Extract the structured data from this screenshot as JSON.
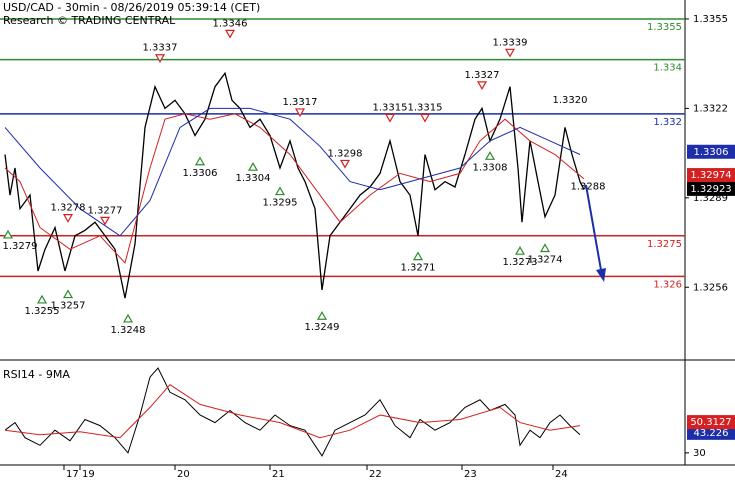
{
  "chart_data": [
    {
      "type": "line",
      "title": "USD/CAD - 30min - 08/26/2019 05:39:14 (CET)",
      "subtitle": "Research © TRADING CENTRAL",
      "xlim": [
        0,
        342.5
      ],
      "ylim": [
        1.3231,
        1.3362
      ],
      "yticks": [
        1.3355,
        1.3322,
        1.3289,
        1.3256
      ],
      "series": [
        {
          "color": "#000000",
          "last": 1.32923,
          "x": [
            2.5,
            5,
            7.5,
            10,
            15,
            19,
            22.5,
            27.5,
            32.5,
            37.5,
            42.5,
            47.5,
            52.5,
            57.5,
            62.5,
            67.5,
            72.5,
            77.5,
            82.5,
            87.5,
            92.5,
            97.5,
            102.5,
            107.5,
            112.5,
            116,
            120,
            125,
            130,
            135,
            140,
            145,
            149,
            152.5,
            157.5,
            161,
            165,
            170,
            175,
            180,
            185,
            190,
            195,
            200,
            205,
            209,
            212.5,
            217.5,
            222.5,
            227.5,
            232.5,
            237.5,
            241,
            245,
            250,
            255,
            259,
            261,
            265,
            269,
            272.5,
            277.5,
            282.5,
            286,
            290,
            292
          ],
          "values": [
            1.3305,
            1.329,
            1.33,
            1.3285,
            1.329,
            1.3262,
            1.327,
            1.3278,
            1.3262,
            1.3275,
            1.3277,
            1.328,
            1.3275,
            1.327,
            1.3252,
            1.3272,
            1.3315,
            1.333,
            1.3322,
            1.3325,
            1.332,
            1.3312,
            1.3318,
            1.333,
            1.3335,
            1.3325,
            1.3322,
            1.3315,
            1.3318,
            1.3312,
            1.33,
            1.331,
            1.33,
            1.3295,
            1.3285,
            1.3255,
            1.3275,
            1.328,
            1.3285,
            1.329,
            1.3293,
            1.3298,
            1.331,
            1.3295,
            1.329,
            1.3275,
            1.3305,
            1.3292,
            1.3295,
            1.3293,
            1.3305,
            1.3318,
            1.3322,
            1.331,
            1.3318,
            1.333,
            1.33,
            1.328,
            1.331,
            1.3295,
            1.3282,
            1.329,
            1.3315,
            1.3305,
            1.3295,
            1.3292
          ]
        },
        {
          "color": "#d42020",
          "last": 1.32974,
          "x": [
            2.5,
            10,
            20,
            35,
            50,
            62.5,
            75,
            82.5,
            92.5,
            105,
            117.5,
            130,
            145,
            160,
            170,
            185,
            200,
            215,
            230,
            240,
            252.5,
            265,
            277.5,
            292
          ],
          "values": [
            1.33,
            1.3295,
            1.3278,
            1.327,
            1.3275,
            1.3265,
            1.33,
            1.3318,
            1.332,
            1.3318,
            1.332,
            1.3315,
            1.3305,
            1.329,
            1.328,
            1.329,
            1.3298,
            1.3295,
            1.3298,
            1.331,
            1.3318,
            1.331,
            1.3305,
            1.3296
          ]
        },
        {
          "color": "#1c2fa8",
          "last": 1.3306,
          "x": [
            2.5,
            20,
            40,
            60,
            75,
            90,
            105,
            125,
            145,
            160,
            175,
            190,
            210,
            230,
            245,
            260,
            275,
            290
          ],
          "values": [
            1.3315,
            1.33,
            1.3285,
            1.3275,
            1.3288,
            1.3315,
            1.3322,
            1.3322,
            1.3318,
            1.3308,
            1.3295,
            1.3292,
            1.3296,
            1.33,
            1.331,
            1.3315,
            1.331,
            1.3305
          ]
        }
      ],
      "levels": [
        {
          "value": 1.3355,
          "color": "#2e8b2e"
        },
        {
          "value": 1.334,
          "color": "#2e8b2e"
        },
        {
          "value": 1.332,
          "color": "#1c2fa8"
        },
        {
          "value": 1.3275,
          "color": "#d42020"
        },
        {
          "value": 1.326,
          "color": "#d42020"
        }
      ],
      "highs": [
        {
          "x": 34,
          "value": 1.3278
        },
        {
          "x": 52.5,
          "value": 1.3277
        },
        {
          "x": 80,
          "value": 1.3337
        },
        {
          "x": 115,
          "value": 1.3346
        },
        {
          "x": 150,
          "value": 1.3317
        },
        {
          "x": 172.5,
          "value": 1.3298
        },
        {
          "x": 195,
          "value": 1.3315
        },
        {
          "x": 212.5,
          "value": 1.3315
        },
        {
          "x": 241,
          "value": 1.3327
        },
        {
          "x": 255,
          "value": 1.3339
        }
      ],
      "lows": [
        {
          "x": 4,
          "value": 1.3279
        },
        {
          "x": 21,
          "value": 1.3255
        },
        {
          "x": 34,
          "value": 1.3257
        },
        {
          "x": 64,
          "value": 1.3248
        },
        {
          "x": 100,
          "value": 1.3306
        },
        {
          "x": 126.5,
          "value": 1.3304
        },
        {
          "x": 140,
          "value": 1.3295
        },
        {
          "x": 161,
          "value": 1.3249
        },
        {
          "x": 209,
          "value": 1.3271
        },
        {
          "x": 245,
          "value": 1.3308
        },
        {
          "x": 260,
          "value": 1.3273
        },
        {
          "x": 272.5,
          "value": 1.3274
        }
      ],
      "notes": [
        {
          "x": 285,
          "value": 1.332,
          "label": "1.3320"
        },
        {
          "x": 294,
          "value": 1.3288
        }
      ]
    },
    {
      "type": "line",
      "title": "RSI14 - 9MA",
      "xlim": [
        0,
        342.5
      ],
      "ylim": [
        22,
        88
      ],
      "yticks": [
        30
      ],
      "xticks": [
        {
          "value": 32,
          "label": "17"
        },
        {
          "value": 40,
          "label": "19"
        },
        {
          "value": 87.5,
          "label": "20"
        },
        {
          "value": 135,
          "label": "21"
        },
        {
          "value": 183.5,
          "label": "22"
        },
        {
          "value": 231,
          "label": "23"
        },
        {
          "value": 276.5,
          "label": "24"
        }
      ],
      "series": [
        {
          "color": "#000000",
          "box": "#1c2fa8",
          "last": 43.226,
          "x": [
            2.5,
            7.5,
            12.5,
            20,
            27.5,
            35,
            42.5,
            50,
            57.5,
            64,
            70,
            75,
            79,
            85,
            92.5,
            100,
            107.5,
            115,
            122.5,
            130,
            137.5,
            145,
            152.5,
            157.5,
            161,
            167.5,
            175,
            182.5,
            190,
            197.5,
            205,
            210,
            217.5,
            225,
            232.5,
            240,
            245,
            252.5,
            257.5,
            260,
            265,
            270,
            275,
            280,
            285,
            290
          ],
          "values": [
            45,
            50,
            40,
            35,
            45,
            38,
            52,
            48,
            40,
            30,
            55,
            80,
            86,
            70,
            65,
            55,
            50,
            58,
            50,
            45,
            55,
            48,
            45,
            35,
            28,
            45,
            50,
            55,
            65,
            48,
            40,
            52,
            45,
            50,
            60,
            65,
            58,
            62,
            55,
            35,
            45,
            40,
            50,
            55,
            48,
            42
          ]
        },
        {
          "color": "#d42020",
          "box": "#d42020",
          "last": 50.3127,
          "x": [
            2.5,
            20,
            40,
            60,
            75,
            85,
            100,
            120,
            140,
            160,
            175,
            190,
            210,
            230,
            250,
            260,
            275,
            290
          ],
          "values": [
            45,
            42,
            44,
            40,
            60,
            75,
            62,
            55,
            50,
            40,
            45,
            55,
            50,
            52,
            60,
            50,
            45,
            48
          ]
        }
      ]
    }
  ]
}
